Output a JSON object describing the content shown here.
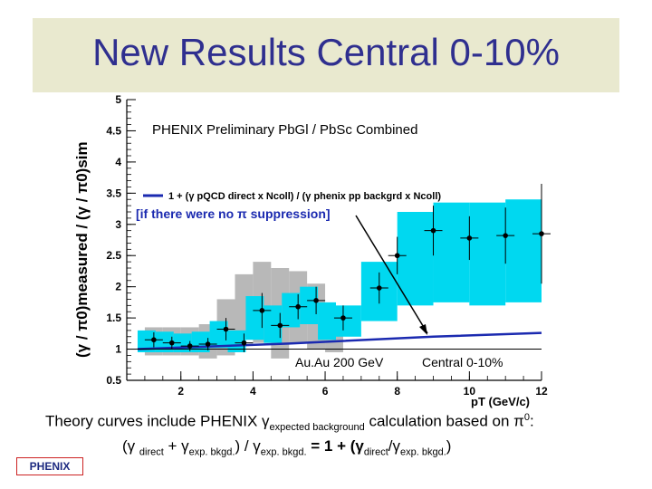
{
  "slide": {
    "title": "New Results Central 0-10%",
    "caption_line1": {
      "prefix": "Theory curves include PHENIX ",
      "gamma": "γ",
      "sub": "expected background",
      "suffix": " calculation based on π",
      "sup": "0",
      "end": ":"
    },
    "caption_line2": {
      "open": "(γ ",
      "sub1": "direct",
      "plus": " + γ",
      "sub2": "exp. bkgd.",
      "mid": ") / γ",
      "sub3": "exp. bkgd.",
      "eq": "  =  1 + (γ",
      "sub4": "direct",
      "slash": "/γ",
      "sub5": "exp. bkgd.",
      "close": ")"
    },
    "logo_text": "PHENIX"
  },
  "chart_data": {
    "type": "scatter",
    "title": "PHENIX Preliminary PbGl / PbSc Combined",
    "xlabel": "pT (GeV/c)",
    "ylabel": "(γ / π0)measured / (γ / π0)sim",
    "xlim": [
      0.5,
      12
    ],
    "ylim": [
      0.5,
      5
    ],
    "x_ticks": [
      2,
      4,
      6,
      8,
      10,
      12
    ],
    "y_ticks": [
      0.5,
      1,
      1.5,
      2,
      2.5,
      3,
      3.5,
      4,
      4.5,
      5
    ],
    "annotations": {
      "legend_line_label": "1 + (γ pQCD direct x Ncoll) / (γ phenix pp backgrd x Ncoll)",
      "legend_note": "[if there were no π suppression]",
      "system": "Au.Au 200 GeV",
      "centrality": "Central  0-10%"
    },
    "series": [
      {
        "points": [
          {
            "x": 1.25,
            "y": 1.15,
            "yerr": 0.12
          },
          {
            "x": 1.75,
            "y": 1.1,
            "yerr": 0.1
          },
          {
            "x": 2.25,
            "y": 1.05,
            "yerr": 0.08
          },
          {
            "x": 2.75,
            "y": 1.08,
            "yerr": 0.1
          },
          {
            "x": 3.25,
            "y": 1.32,
            "yerr": 0.18
          },
          {
            "x": 3.75,
            "y": 1.1,
            "yerr": 0.15
          },
          {
            "x": 4.25,
            "y": 1.62,
            "yerr": 0.28
          },
          {
            "x": 4.75,
            "y": 1.38,
            "yerr": 0.2
          },
          {
            "x": 5.25,
            "y": 1.68,
            "yerr": 0.2
          },
          {
            "x": 5.75,
            "y": 1.78,
            "yerr": 0.22
          },
          {
            "x": 6.5,
            "y": 1.5,
            "yerr": 0.2
          },
          {
            "x": 7.5,
            "y": 1.98,
            "yerr": 0.25
          },
          {
            "x": 8.0,
            "y": 2.5,
            "yerr": 0.3
          },
          {
            "x": 9.0,
            "y": 2.9,
            "yerr": 0.4
          },
          {
            "x": 10.0,
            "y": 2.78,
            "yerr": 0.35
          },
          {
            "x": 11.0,
            "y": 2.82,
            "yerr": 0.45
          },
          {
            "x": 12.0,
            "y": 2.85,
            "yerr": 0.8
          }
        ]
      }
    ],
    "cyan_bands": [
      {
        "x0": 0.8,
        "x1": 1.3,
        "lo": 0.95,
        "hi": 1.3
      },
      {
        "x0": 1.3,
        "x1": 1.8,
        "lo": 0.95,
        "hi": 1.28
      },
      {
        "x0": 1.8,
        "x1": 2.3,
        "lo": 0.95,
        "hi": 1.25
      },
      {
        "x0": 2.3,
        "x1": 2.8,
        "lo": 0.95,
        "hi": 1.28
      },
      {
        "x0": 2.8,
        "x1": 3.3,
        "lo": 1.02,
        "hi": 1.45
      },
      {
        "x0": 3.3,
        "x1": 3.8,
        "lo": 0.95,
        "hi": 1.3
      },
      {
        "x0": 3.8,
        "x1": 4.3,
        "lo": 1.15,
        "hi": 1.85
      },
      {
        "x0": 4.3,
        "x1": 4.8,
        "lo": 1.1,
        "hi": 1.7
      },
      {
        "x0": 4.8,
        "x1": 5.3,
        "lo": 1.35,
        "hi": 1.9
      },
      {
        "x0": 5.3,
        "x1": 5.8,
        "lo": 1.4,
        "hi": 2.0
      },
      {
        "x0": 5.8,
        "x1": 6.3,
        "lo": 1.15,
        "hi": 1.75
      },
      {
        "x0": 6.3,
        "x1": 7.0,
        "lo": 1.2,
        "hi": 1.7
      },
      {
        "x0": 7.0,
        "x1": 8.0,
        "lo": 1.45,
        "hi": 2.4
      },
      {
        "x0": 8.0,
        "x1": 9.0,
        "lo": 1.7,
        "hi": 3.2
      },
      {
        "x0": 9.0,
        "x1": 10.0,
        "lo": 1.75,
        "hi": 3.35
      },
      {
        "x0": 10.0,
        "x1": 11.0,
        "lo": 1.7,
        "hi": 3.35
      },
      {
        "x0": 11.0,
        "x1": 12.0,
        "lo": 1.75,
        "hi": 3.4
      }
    ],
    "gray_bands": [
      {
        "x0": 1.0,
        "x1": 1.5,
        "lo": 0.9,
        "hi": 1.35
      },
      {
        "x0": 1.5,
        "x1": 2.0,
        "lo": 0.9,
        "hi": 1.35
      },
      {
        "x0": 2.0,
        "x1": 2.5,
        "lo": 0.9,
        "hi": 1.35
      },
      {
        "x0": 2.5,
        "x1": 3.0,
        "lo": 0.85,
        "hi": 1.4
      },
      {
        "x0": 3.0,
        "x1": 3.5,
        "lo": 0.9,
        "hi": 1.8
      },
      {
        "x0": 3.5,
        "x1": 4.0,
        "lo": 1.2,
        "hi": 2.2
      },
      {
        "x0": 4.0,
        "x1": 4.5,
        "lo": 1.1,
        "hi": 2.4
      },
      {
        "x0": 4.5,
        "x1": 5.0,
        "lo": 0.85,
        "hi": 2.3
      },
      {
        "x0": 5.0,
        "x1": 5.5,
        "lo": 1.1,
        "hi": 2.25
      },
      {
        "x0": 5.5,
        "x1": 6.0,
        "lo": 1.0,
        "hi": 2.05
      },
      {
        "x0": 6.0,
        "x1": 6.5,
        "lo": 0.95,
        "hi": 1.55
      }
    ],
    "theory_line": [
      [
        0.8,
        1.0
      ],
      [
        5.0,
        1.09
      ],
      [
        9.0,
        1.2
      ],
      [
        12.0,
        1.26
      ]
    ],
    "colors": {
      "band": "#00d8f0",
      "gray": "#b8b8b8",
      "theory": "#1b2ab0",
      "title": "#2f2f8f",
      "title_band": "#e9e9cf"
    }
  }
}
